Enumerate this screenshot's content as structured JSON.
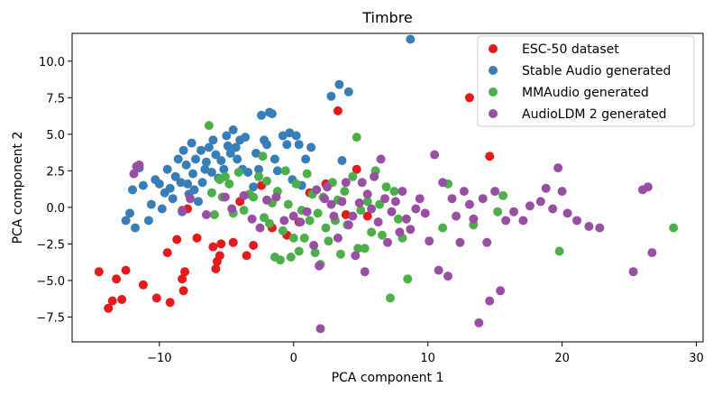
{
  "chart_data": {
    "type": "scatter",
    "title": "Timbre",
    "xlabel": "PCA component 1",
    "ylabel": "PCA component 2",
    "xlim": [
      -16.5,
      30.5
    ],
    "ylim": [
      -9.2,
      11.9
    ],
    "xticks": [
      -10,
      0,
      10,
      20,
      30
    ],
    "xtick_labels": [
      "−10",
      "0",
      "10",
      "20",
      "30"
    ],
    "yticks": [
      -7.5,
      -5.0,
      -2.5,
      0.0,
      2.5,
      5.0,
      7.5,
      10.0
    ],
    "ytick_labels": [
      "−7.5",
      "−5.0",
      "−2.5",
      "0.0",
      "2.5",
      "5.0",
      "7.5",
      "10.0"
    ],
    "legend_position": "top-right",
    "series": [
      {
        "name": "ESC-50 dataset",
        "color": "#e41a1c",
        "points": [
          [
            -14.5,
            -4.4
          ],
          [
            -13.8,
            -6.9
          ],
          [
            -13.5,
            -6.4
          ],
          [
            -13.2,
            -4.9
          ],
          [
            -12.8,
            -6.3
          ],
          [
            -12.5,
            -4.3
          ],
          [
            -11.2,
            -5.3
          ],
          [
            -10.2,
            -6.2
          ],
          [
            -9.4,
            -3.1
          ],
          [
            -9.2,
            -6.5
          ],
          [
            -8.7,
            -2.2
          ],
          [
            -8.3,
            -4.9
          ],
          [
            -8.2,
            -5.7
          ],
          [
            -8.1,
            -4.4
          ],
          [
            -7.9,
            -0.1
          ],
          [
            -7.2,
            -2.1
          ],
          [
            -6.0,
            -2.7
          ],
          [
            -5.8,
            -4.2
          ],
          [
            -5.7,
            -3.7
          ],
          [
            -5.5,
            -3.3
          ],
          [
            -5.4,
            -2.5
          ],
          [
            -4.5,
            -2.4
          ],
          [
            -4.0,
            0.4
          ],
          [
            -3.5,
            -3.3
          ],
          [
            -3.0,
            -2.6
          ],
          [
            -2.4,
            1.5
          ],
          [
            -1.6,
            -1.4
          ],
          [
            -0.5,
            -1.9
          ],
          [
            0.4,
            -1.0
          ],
          [
            1.2,
            1.0
          ],
          [
            2.4,
            1.6
          ],
          [
            3.3,
            6.6
          ],
          [
            3.9,
            -0.5
          ],
          [
            4.7,
            2.6
          ],
          [
            5.5,
            -0.6
          ],
          [
            13.1,
            7.5
          ],
          [
            14.6,
            3.5
          ]
        ]
      },
      {
        "name": "Stable Audio generated",
        "color": "#377eb8",
        "points": [
          [
            -12.5,
            -0.9
          ],
          [
            -12.2,
            -0.4
          ],
          [
            -12.0,
            1.2
          ],
          [
            -11.8,
            -1.4
          ],
          [
            -11.5,
            2.7
          ],
          [
            -11.2,
            1.5
          ],
          [
            -10.8,
            -0.9
          ],
          [
            -10.6,
            0.2
          ],
          [
            -10.3,
            1.9
          ],
          [
            -10.0,
            1.6
          ],
          [
            -9.8,
            -0.1
          ],
          [
            -9.6,
            1.0
          ],
          [
            -9.4,
            2.6
          ],
          [
            -9.2,
            1.3
          ],
          [
            -9.0,
            0.6
          ],
          [
            -8.8,
            2.1
          ],
          [
            -8.6,
            3.3
          ],
          [
            -8.4,
            1.7
          ],
          [
            -8.3,
            -0.3
          ],
          [
            -8.2,
            3.9
          ],
          [
            -8.0,
            2.9
          ],
          [
            -7.9,
            1.6
          ],
          [
            -7.8,
            0.9
          ],
          [
            -7.6,
            4.4
          ],
          [
            -7.5,
            2.3
          ],
          [
            -7.4,
            1.2
          ],
          [
            -7.3,
            3.3
          ],
          [
            -7.1,
            0.4
          ],
          [
            -6.9,
            3.9
          ],
          [
            -6.8,
            1.7
          ],
          [
            -6.6,
            2.6
          ],
          [
            -6.5,
            3.1
          ],
          [
            -6.3,
            4.1
          ],
          [
            -6.1,
            2.4
          ],
          [
            -6.0,
            4.6
          ],
          [
            -5.8,
            3.6
          ],
          [
            -5.6,
            2.0
          ],
          [
            -5.4,
            3.2
          ],
          [
            -5.2,
            2.6
          ],
          [
            -5.0,
            4.9
          ],
          [
            -4.9,
            4.2
          ],
          [
            -4.7,
            3.7
          ],
          [
            -4.5,
            5.3
          ],
          [
            -4.3,
            4.1
          ],
          [
            -4.2,
            3.3
          ],
          [
            -4.0,
            4.6
          ],
          [
            -3.8,
            2.6
          ],
          [
            -3.6,
            4.8
          ],
          [
            -3.4,
            2.4
          ],
          [
            -3.0,
            1.4
          ],
          [
            -2.8,
            3.7
          ],
          [
            -2.6,
            2.6
          ],
          [
            -2.4,
            6.3
          ],
          [
            -2.2,
            4.6
          ],
          [
            -2.0,
            4.3
          ],
          [
            -1.8,
            6.5
          ],
          [
            -1.6,
            6.4
          ],
          [
            -1.4,
            3.3
          ],
          [
            -1.2,
            2.5
          ],
          [
            -0.8,
            4.9
          ],
          [
            -0.5,
            4.3
          ],
          [
            -0.3,
            5.1
          ],
          [
            -0.1,
            1.9
          ],
          [
            0.2,
            4.9
          ],
          [
            0.4,
            4.3
          ],
          [
            0.6,
            1.5
          ],
          [
            0.9,
            3.3
          ],
          [
            1.3,
            4.1
          ],
          [
            2.8,
            7.6
          ],
          [
            3.4,
            8.4
          ],
          [
            3.6,
            3.2
          ],
          [
            4.1,
            7.9
          ],
          [
            8.7,
            11.5
          ]
        ]
      },
      {
        "name": "MMAudio generated",
        "color": "#4daf4a",
        "points": [
          [
            -6.3,
            5.6
          ],
          [
            -6.1,
            1.0
          ],
          [
            -5.9,
            -0.5
          ],
          [
            -5.5,
            1.9
          ],
          [
            -5.3,
            0.7
          ],
          [
            -5.1,
            2.1
          ],
          [
            -4.8,
            1.6
          ],
          [
            -4.5,
            -0.4
          ],
          [
            -4.1,
            2.4
          ],
          [
            -3.7,
            -0.2
          ],
          [
            -3.3,
            0.9
          ],
          [
            -3.0,
            0.7
          ],
          [
            -2.6,
            2.1
          ],
          [
            -2.3,
            3.5
          ],
          [
            -2.2,
            -0.7
          ],
          [
            -2.0,
            1.8
          ],
          [
            -1.8,
            -1.1
          ],
          [
            -1.6,
            0.3
          ],
          [
            -1.4,
            -3.4
          ],
          [
            -1.2,
            1.1
          ],
          [
            -1.0,
            -3.6
          ],
          [
            -0.8,
            -1.6
          ],
          [
            -0.6,
            2.5
          ],
          [
            -0.4,
            0.2
          ],
          [
            -0.2,
            -3.4
          ],
          [
            0.0,
            -2.1
          ],
          [
            0.2,
            1.6
          ],
          [
            0.4,
            -3.0
          ],
          [
            0.6,
            -0.2
          ],
          [
            0.8,
            -2.1
          ],
          [
            1.0,
            2.3
          ],
          [
            1.2,
            -0.9
          ],
          [
            1.4,
            0.9
          ],
          [
            1.6,
            -3.1
          ],
          [
            1.8,
            -0.4
          ],
          [
            2.0,
            -3.9
          ],
          [
            2.2,
            0.7
          ],
          [
            2.4,
            -1.4
          ],
          [
            2.6,
            -2.3
          ],
          [
            2.9,
            1.7
          ],
          [
            3.1,
            -0.9
          ],
          [
            3.3,
            0.5
          ],
          [
            3.5,
            -3.2
          ],
          [
            3.8,
            1.1
          ],
          [
            4.0,
            -1.2
          ],
          [
            4.4,
            2.1
          ],
          [
            4.7,
            4.8
          ],
          [
            4.8,
            -2.8
          ],
          [
            5.0,
            -0.2
          ],
          [
            5.3,
            -2.8
          ],
          [
            5.5,
            0.4
          ],
          [
            5.8,
            -1.7
          ],
          [
            6.1,
            2.5
          ],
          [
            6.4,
            0.2
          ],
          [
            6.6,
            -1.9
          ],
          [
            6.9,
            1.4
          ],
          [
            7.2,
            -6.2
          ],
          [
            7.5,
            1.1
          ],
          [
            7.8,
            -0.8
          ],
          [
            8.1,
            -2.1
          ],
          [
            8.5,
            -4.9
          ],
          [
            11.5,
            1.6
          ],
          [
            11.1,
            -1.4
          ],
          [
            13.4,
            -1.2
          ],
          [
            15.2,
            -0.3
          ],
          [
            15.6,
            0.8
          ],
          [
            19.8,
            -3.0
          ],
          [
            28.3,
            -1.4
          ]
        ]
      },
      {
        "name": "AudioLDM 2 generated",
        "color": "#984ea3",
        "points": [
          [
            -11.9,
            2.3
          ],
          [
            -11.7,
            2.8
          ],
          [
            -11.5,
            2.9
          ],
          [
            -8.3,
            -0.2
          ],
          [
            -7.7,
            0.6
          ],
          [
            -6.5,
            -0.5
          ],
          [
            -5.1,
            0.7
          ],
          [
            -4.6,
            -0.1
          ],
          [
            -3.7,
            0.8
          ],
          [
            -3.1,
            -0.8
          ],
          [
            -2.5,
            -1.4
          ],
          [
            -2.0,
            0.5
          ],
          [
            -1.3,
            0.7
          ],
          [
            -0.7,
            -0.9
          ],
          [
            0.0,
            -0.6
          ],
          [
            0.5,
            -1.0
          ],
          [
            1.0,
            -0.3
          ],
          [
            1.5,
            -2.6
          ],
          [
            1.7,
            1.2
          ],
          [
            1.9,
            -4.0
          ],
          [
            2.0,
            -8.3
          ],
          [
            2.3,
            0.6
          ],
          [
            2.5,
            1.4
          ],
          [
            2.8,
            0.2
          ],
          [
            3.0,
            -0.6
          ],
          [
            3.3,
            -2.1
          ],
          [
            3.6,
            0.4
          ],
          [
            3.9,
            1.7
          ],
          [
            4.1,
            -1.2
          ],
          [
            4.4,
            -0.6
          ],
          [
            4.6,
            -3.3
          ],
          [
            4.9,
            0.3
          ],
          [
            5.1,
            1.7
          ],
          [
            5.3,
            -4.4
          ],
          [
            5.5,
            0.9
          ],
          [
            5.8,
            -0.1
          ],
          [
            6.0,
            2.1
          ],
          [
            6.3,
            -1.0
          ],
          [
            6.5,
            3.3
          ],
          [
            6.8,
            0.6
          ],
          [
            7.0,
            -2.4
          ],
          [
            7.3,
            -0.3
          ],
          [
            7.6,
            0.4
          ],
          [
            7.9,
            -1.7
          ],
          [
            8.1,
            1.1
          ],
          [
            8.4,
            -0.8
          ],
          [
            8.7,
            -1.5
          ],
          [
            9.1,
            -0.1
          ],
          [
            9.4,
            0.6
          ],
          [
            9.8,
            -0.4
          ],
          [
            10.1,
            -2.3
          ],
          [
            10.5,
            3.6
          ],
          [
            10.8,
            -4.3
          ],
          [
            11.1,
            1.7
          ],
          [
            11.5,
            -4.7
          ],
          [
            11.8,
            0.6
          ],
          [
            12.1,
            -0.6
          ],
          [
            12.4,
            -2.4
          ],
          [
            12.7,
            1.1
          ],
          [
            13.1,
            0.2
          ],
          [
            13.4,
            -0.8
          ],
          [
            13.8,
            -7.9
          ],
          [
            14.1,
            0.6
          ],
          [
            14.4,
            -2.4
          ],
          [
            14.6,
            -6.4
          ],
          [
            15.0,
            1.1
          ],
          [
            15.4,
            -5.7
          ],
          [
            15.8,
            -0.9
          ],
          [
            16.4,
            -0.3
          ],
          [
            17.1,
            -0.9
          ],
          [
            17.6,
            0.1
          ],
          [
            18.4,
            0.4
          ],
          [
            18.8,
            1.3
          ],
          [
            19.3,
            -0.1
          ],
          [
            19.7,
            2.7
          ],
          [
            20.0,
            1.1
          ],
          [
            20.4,
            -0.4
          ],
          [
            21.1,
            -0.9
          ],
          [
            22.0,
            -1.3
          ],
          [
            22.8,
            -1.4
          ],
          [
            25.3,
            -4.4
          ],
          [
            26.0,
            1.2
          ],
          [
            26.4,
            1.4
          ],
          [
            26.7,
            -3.1
          ]
        ]
      }
    ]
  }
}
